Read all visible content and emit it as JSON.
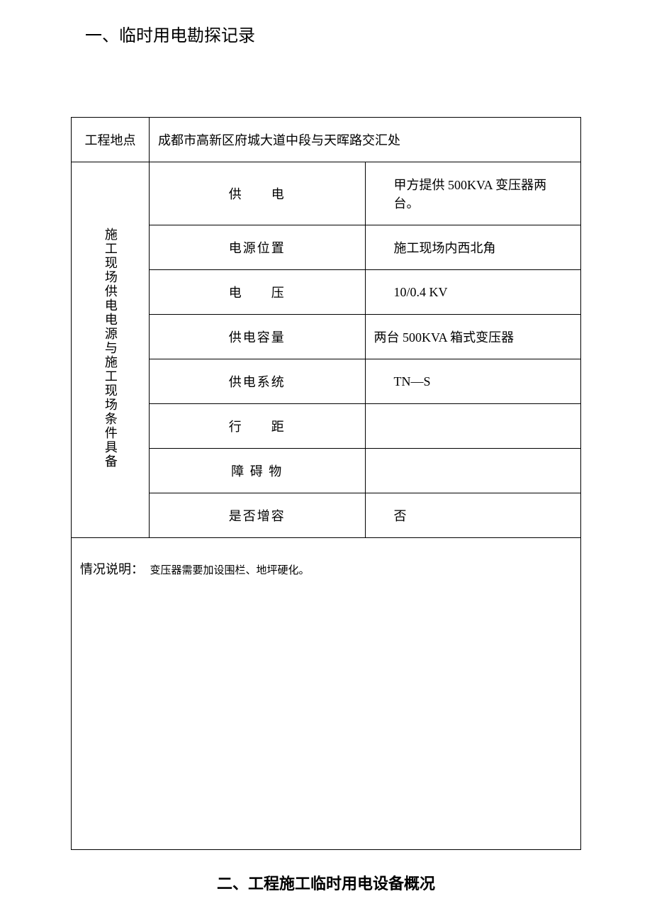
{
  "headings": {
    "section1": "一、临时用电勘探记录",
    "section2": "二、工程施工临时用电设备概况"
  },
  "table": {
    "row1": {
      "label": "工程地点",
      "value": "成都市高新区府城大道中段与天晖路交汇处"
    },
    "verticalLabel": "施工现场供电电源与施工现场条件具备",
    "rows": [
      {
        "label": "供　　电",
        "value": "甲方提供 500KVA 变压器两台。",
        "valueClass": "value-sm",
        "indent": true
      },
      {
        "label": "电源位置",
        "value": "施工现场内西北角",
        "indent": true
      },
      {
        "label": "电　　压",
        "value": "10/0.4 KV",
        "indent": true
      },
      {
        "label": "供电容量",
        "value": "两台 500KVA 箱式变压器",
        "indent": false
      },
      {
        "label": "供电系统",
        "value": "TN—S",
        "indent": true
      },
      {
        "label": "行　　距",
        "value": "",
        "indent": false
      },
      {
        "label": "障 碍 物",
        "value": "",
        "indent": false
      },
      {
        "label": "是否增容",
        "value": "否",
        "indent": true
      }
    ],
    "situation": {
      "label": "情况说明：",
      "value": "变压器需要加设围栏、地坪硬化。"
    }
  },
  "styles": {
    "textColor": "#000000",
    "borderColor": "#000000",
    "background": "#ffffff",
    "heading1FontSize": 24,
    "heading2FontSize": 22,
    "cellFontSize": 18,
    "smallFontSize": 15
  }
}
